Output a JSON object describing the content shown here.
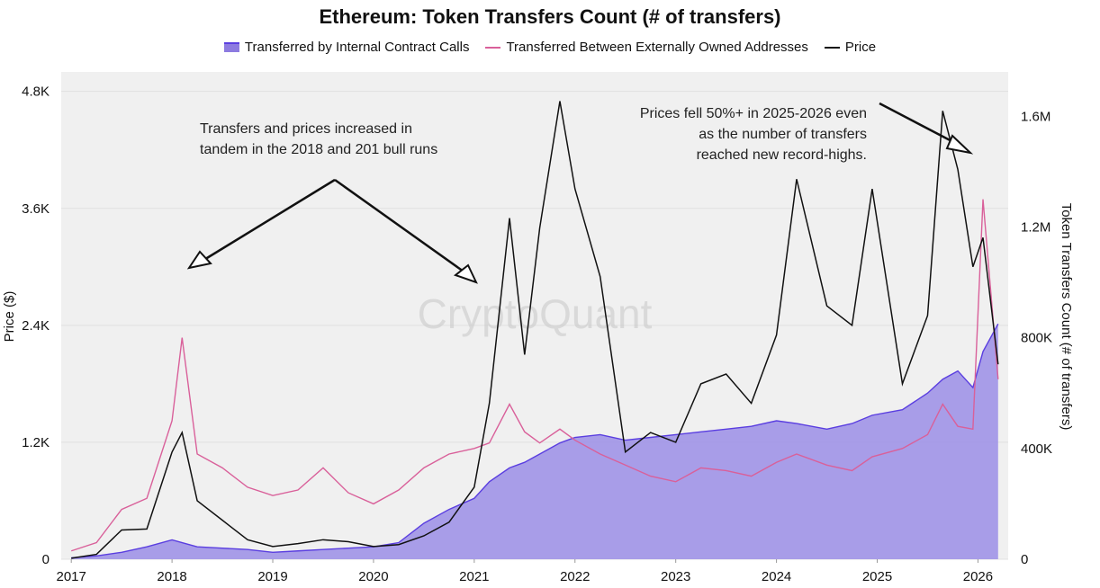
{
  "title": "Ethereum: Token Transfers Count (# of transfers)",
  "legend": [
    {
      "label": "Transferred by Internal Contract Calls",
      "color": "#5a3ee0"
    },
    {
      "label": "Transferred Between Externally Owned Addresses",
      "color": "#d9609a"
    },
    {
      "label": "Price",
      "color": "#111111"
    }
  ],
  "watermark": "CryptoQuant",
  "annotations": [
    {
      "lines": [
        "Transfers and prices increased in",
        "tandem in the 2018 and 201 bull runs"
      ]
    },
    {
      "lines": [
        "Prices fell 50%+ in 2025-2026 even",
        "as the number of transfers",
        "reached new record-highs."
      ]
    }
  ],
  "chart_data": {
    "type": "area",
    "title": "Ethereum: Token Transfers Count (# of transfers)",
    "ylabel_left": "Price ($)",
    "ylabel_right": "Token Transfers Count (# of transfers)",
    "x_ticks": [
      "2017",
      "2018",
      "2019",
      "2020",
      "2021",
      "2022",
      "2023",
      "2024",
      "2025",
      "2026"
    ],
    "y_left_ticks": [
      "0",
      "1.2K",
      "2.4K",
      "3.6K",
      "4.8K"
    ],
    "y_left_range": [
      0,
      5000
    ],
    "y_right_ticks": [
      "0",
      "400K",
      "800K",
      "1.2M",
      "1.6M"
    ],
    "y_right_range": [
      0,
      1760000
    ],
    "x": [
      2017.0,
      2017.25,
      2017.5,
      2017.75,
      2018.0,
      2018.1,
      2018.25,
      2018.5,
      2018.75,
      2019.0,
      2019.25,
      2019.5,
      2019.75,
      2020.0,
      2020.25,
      2020.5,
      2020.75,
      2021.0,
      2021.15,
      2021.35,
      2021.5,
      2021.65,
      2021.85,
      2022.0,
      2022.25,
      2022.5,
      2022.75,
      2023.0,
      2023.25,
      2023.5,
      2023.75,
      2024.0,
      2024.2,
      2024.5,
      2024.75,
      2024.95,
      2025.25,
      2025.5,
      2025.65,
      2025.8,
      2025.95,
      2026.05,
      2026.2
    ],
    "series": [
      {
        "name": "Transferred by Internal Contract Calls",
        "values": [
          5000,
          12000,
          25000,
          45000,
          70000,
          60000,
          45000,
          40000,
          35000,
          25000,
          30000,
          35000,
          40000,
          45000,
          60000,
          130000,
          180000,
          220000,
          280000,
          330000,
          350000,
          380000,
          420000,
          440000,
          450000,
          430000,
          440000,
          450000,
          460000,
          470000,
          480000,
          500000,
          490000,
          470000,
          490000,
          520000,
          540000,
          600000,
          650000,
          680000,
          620000,
          750000,
          850000
        ]
      },
      {
        "name": "Transferred Between Externally Owned Addresses",
        "values": [
          30000,
          60000,
          180000,
          220000,
          500000,
          800000,
          380000,
          330000,
          260000,
          230000,
          250000,
          330000,
          240000,
          200000,
          250000,
          330000,
          380000,
          400000,
          420000,
          560000,
          460000,
          420000,
          470000,
          430000,
          380000,
          340000,
          300000,
          280000,
          330000,
          320000,
          300000,
          350000,
          380000,
          340000,
          320000,
          370000,
          400000,
          450000,
          560000,
          480000,
          470000,
          1300000,
          650000
        ]
      },
      {
        "name": "Price",
        "values": [
          10,
          50,
          300,
          310,
          1100,
          1300,
          600,
          400,
          200,
          130,
          160,
          200,
          180,
          130,
          150,
          240,
          380,
          740,
          1600,
          3500,
          2100,
          3400,
          4700,
          3800,
          2900,
          1100,
          1300,
          1200,
          1800,
          1900,
          1600,
          2300,
          3900,
          2600,
          2400,
          3800,
          1800,
          2500,
          4600,
          4000,
          3000,
          3300,
          2000
        ]
      }
    ],
    "grid": true,
    "legend_position": "top-center"
  }
}
